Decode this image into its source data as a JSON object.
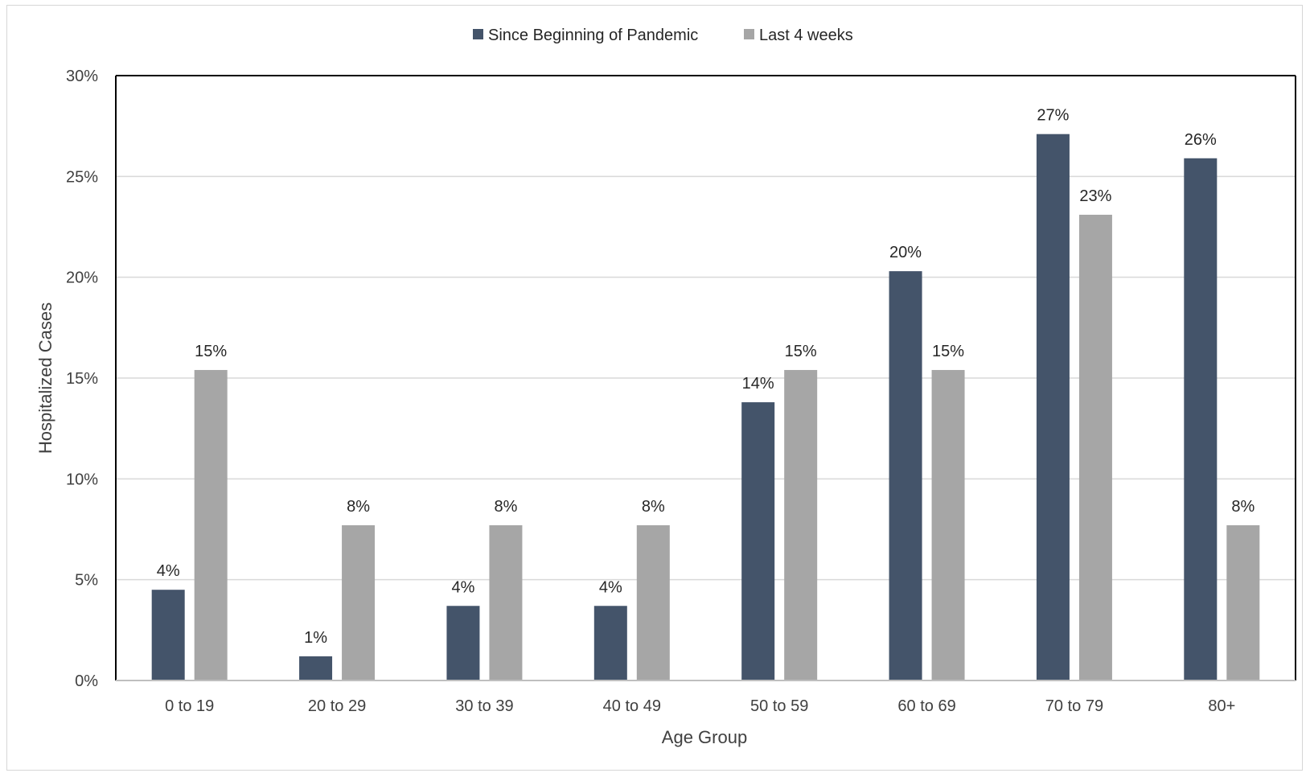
{
  "chart_data": {
    "type": "bar",
    "xlabel": "Age Group",
    "ylabel": "Hospitalized Cases",
    "ylim": [
      0,
      30
    ],
    "yticks": [
      0,
      5,
      10,
      15,
      20,
      25,
      30
    ],
    "ytick_labels": [
      "0%",
      "5%",
      "10%",
      "15%",
      "20%",
      "25%",
      "30%"
    ],
    "grid": true,
    "legend_position": "top-center",
    "categories": [
      "0 to 19",
      "20 to 29",
      "30 to 39",
      "40 to 49",
      "50 to 59",
      "60 to 69",
      "70 to 79",
      "80+"
    ],
    "series": [
      {
        "name": "Since Beginning of Pandemic",
        "color": "#44546a",
        "values": [
          4.5,
          1.2,
          3.7,
          3.7,
          13.8,
          20.3,
          27.1,
          25.9
        ],
        "labels": [
          "4%",
          "1%",
          "4%",
          "4%",
          "14%",
          "20%",
          "27%",
          "26%"
        ]
      },
      {
        "name": "Last 4 weeks",
        "color": "#a6a6a6",
        "values": [
          15.4,
          7.7,
          7.7,
          7.7,
          15.4,
          15.4,
          23.1,
          7.7
        ],
        "labels": [
          "15%",
          "8%",
          "8%",
          "8%",
          "15%",
          "15%",
          "23%",
          "8%"
        ]
      }
    ]
  }
}
